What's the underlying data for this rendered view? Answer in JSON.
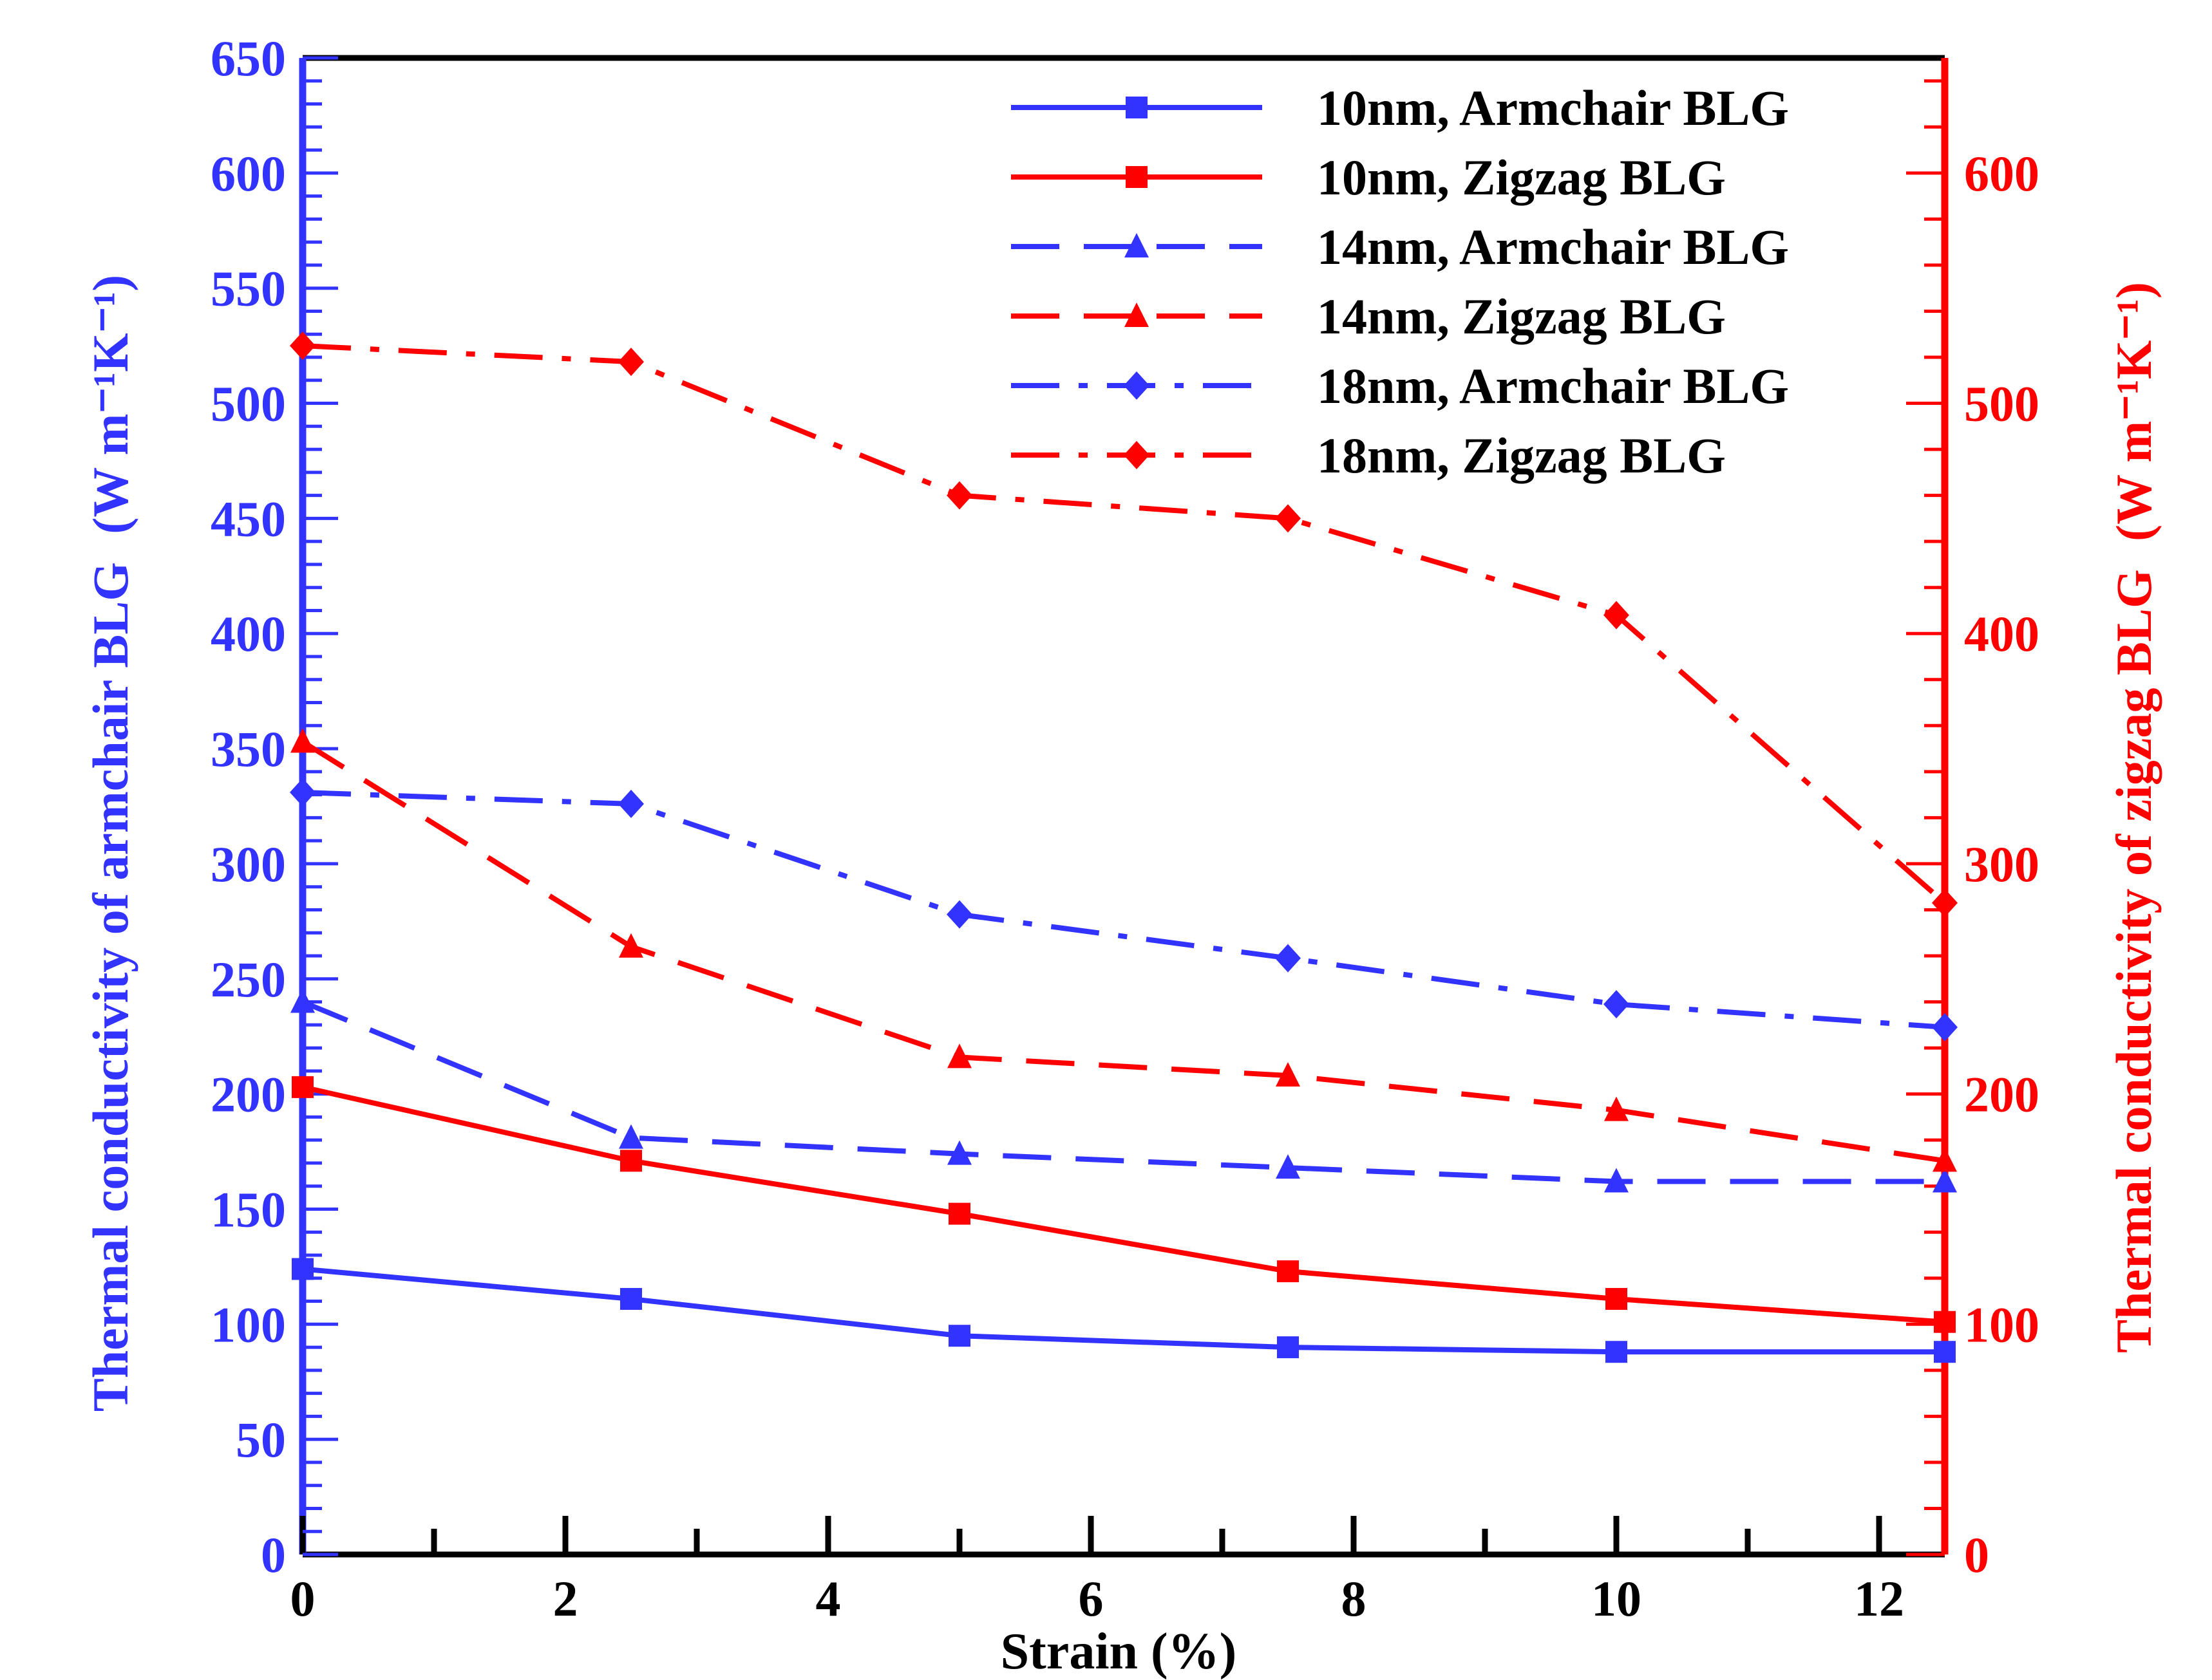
{
  "chart_data": {
    "type": "line",
    "title": "",
    "xlabel": "Strain (%)",
    "ylabel_left": "Thermal conductivity of armchair BLG",
    "ylabel_left_unit": "(W m⁻¹K⁻¹)",
    "ylabel_right": "Thermal conductivity of zigzag BLG",
    "ylabel_right_unit": "(W m⁻¹K⁻¹)",
    "xlim": [
      0,
      12.5
    ],
    "ylim_left": [
      0,
      650
    ],
    "ylim_right": [
      0,
      650
    ],
    "x_ticks": [
      0,
      2,
      4,
      6,
      8,
      10,
      12
    ],
    "x_tick_labels": [
      "0",
      "2",
      "4",
      "6",
      "8",
      "10",
      "12"
    ],
    "y_left_ticks": [
      0,
      50,
      100,
      150,
      200,
      250,
      300,
      350,
      400,
      450,
      500,
      550,
      600,
      650
    ],
    "y_left_tick_labels": [
      "0",
      "50",
      "100",
      "150",
      "200",
      "250",
      "300",
      "350",
      "400",
      "450",
      "500",
      "550",
      "600",
      "650"
    ],
    "y_right_ticks": [
      0,
      100,
      200,
      300,
      400,
      500,
      600
    ],
    "y_right_tick_labels": [
      "0",
      "100",
      "200",
      "300",
      "400",
      "500",
      "600"
    ],
    "left_axis_color": "#3333ff",
    "right_axis_color": "#ff0000",
    "grid": false,
    "legend_position": "top-right",
    "x": [
      0,
      2.5,
      5,
      7.5,
      10,
      12.5
    ],
    "series": [
      {
        "name": "10nm, Armchair BLG",
        "values": [
          124,
          111,
          95,
          90,
          88,
          88
        ],
        "color": "#3333ff",
        "dash": "solid",
        "marker": "square",
        "axis": "left"
      },
      {
        "name": "10nm, Zigzag BLG",
        "values": [
          203,
          171,
          148,
          123,
          111,
          101
        ],
        "color": "#ff0000",
        "dash": "solid",
        "marker": "square",
        "axis": "right"
      },
      {
        "name": "14nm, Armchair BLG",
        "values": [
          240,
          181,
          174,
          168,
          162,
          162
        ],
        "color": "#3333ff",
        "dash": "dashed",
        "marker": "triangle",
        "axis": "left"
      },
      {
        "name": "14nm, Zigzag BLG",
        "values": [
          353,
          264,
          216,
          208,
          193,
          171
        ],
        "color": "#ff0000",
        "dash": "dashed",
        "marker": "triangle",
        "axis": "right"
      },
      {
        "name": "18nm, Armchair BLG",
        "values": [
          331,
          326,
          278,
          259,
          239,
          229
        ],
        "color": "#3333ff",
        "dash": "dashdot",
        "marker": "diamond",
        "axis": "left"
      },
      {
        "name": "18nm, Zigzag BLG",
        "values": [
          525,
          518,
          460,
          450,
          408,
          283
        ],
        "color": "#ff0000",
        "dash": "dashdot",
        "marker": "diamond",
        "axis": "right"
      }
    ]
  }
}
